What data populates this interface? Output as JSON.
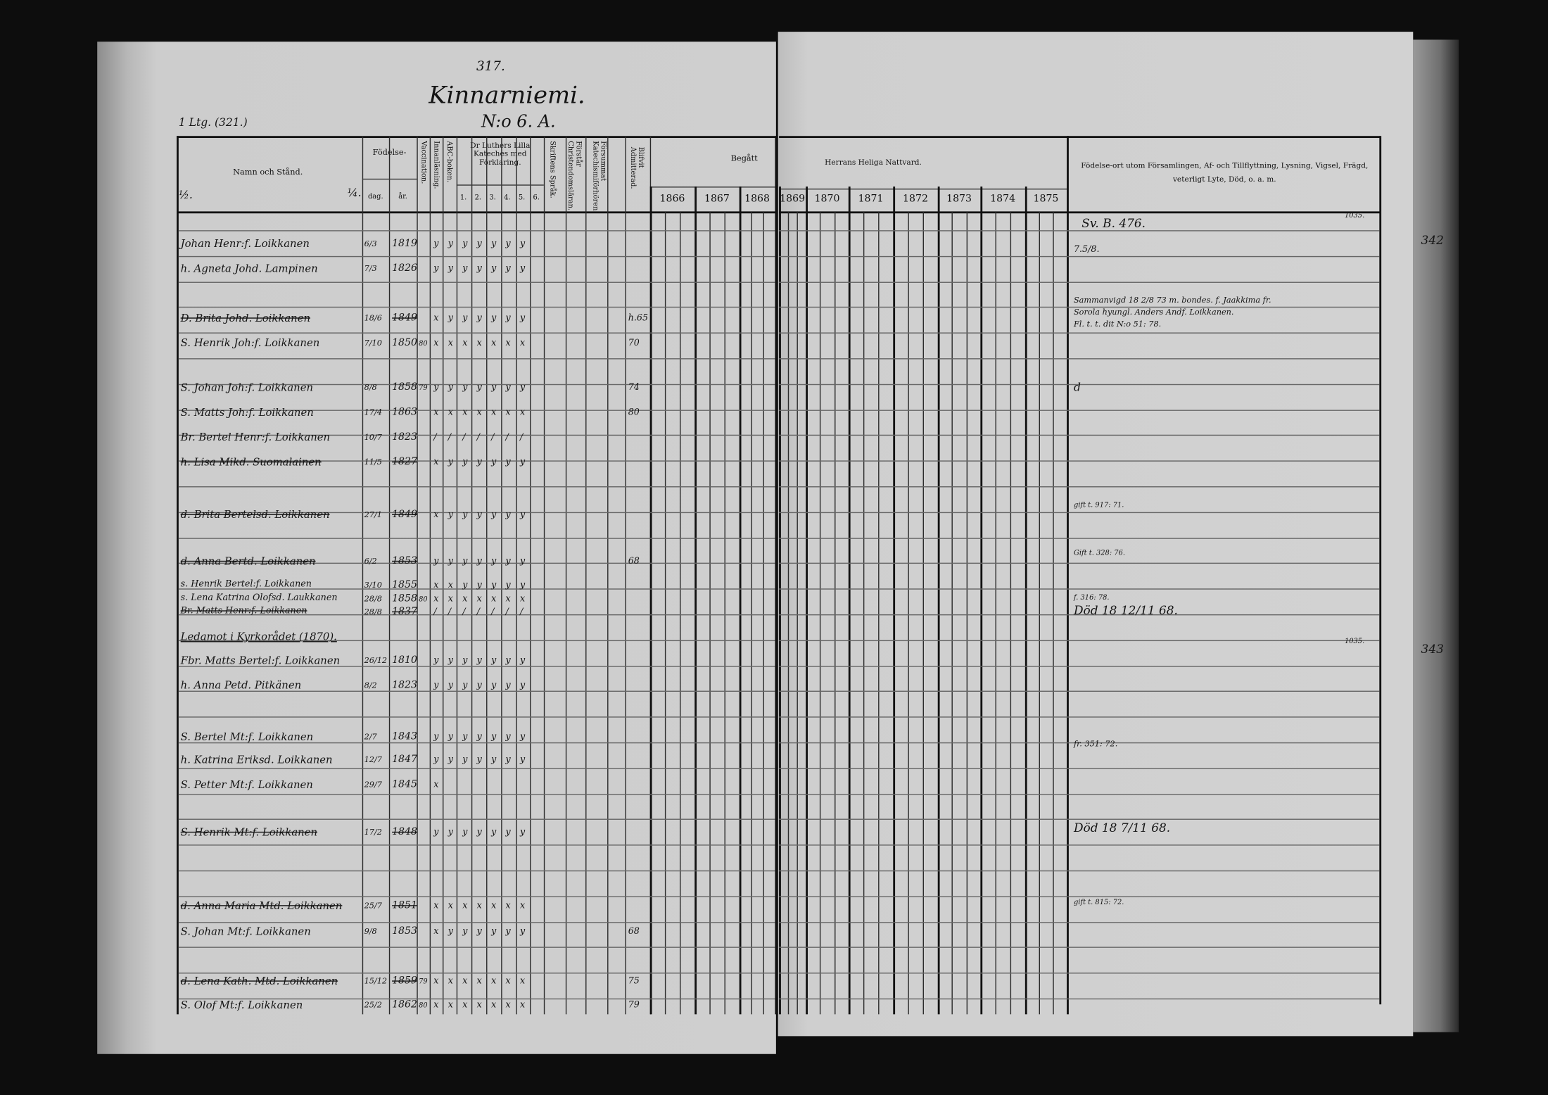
{
  "header": {
    "page_number": "317.",
    "village": "Kinnarniemi.",
    "house_number": "N:o 6. A.",
    "margin_ref": "1 Ltg. (321.)",
    "half_mark": "½.",
    "quarter_mark": "¼."
  },
  "columns": {
    "name": "Namn och Stånd.",
    "birth": "Födelse-",
    "day": "dag.",
    "year": "år.",
    "vaccination": "Vaccination.",
    "reading": "Innanläsning.",
    "abc": "ABC-boken.",
    "catechism": "Dr Luthers Lilla Kateches med Förklaring.",
    "catechism_parts": [
      "1.",
      "2.",
      "3.",
      "4.",
      "5.",
      "6."
    ],
    "scripture": "Skriftens Språk.",
    "christian_doctrine": "Förstår Christendomsläran.",
    "missed_exams": "Försummat Katechismiförhören.",
    "admitted": "Blifvit Admitterad.",
    "attended": "Begått",
    "communion": "Herrans Heliga Nattvard.",
    "notes": "Födelse-ort utom Församlingen, Af- och Tillflyttning, Lysning, Vigsel, Frägd, veterligt Lyte, Död, o. a. m.",
    "years_left": [
      "1866",
      "1867",
      "1868"
    ],
    "years_right": [
      "1869",
      "1870",
      "1871",
      "1872",
      "1873",
      "1874",
      "1875"
    ]
  },
  "rows": [
    {
      "name": "Johan Henr:f. Loikkanen",
      "day": "6/3",
      "year": "1819",
      "marks": "y y y y y y y",
      "struck": false
    },
    {
      "name": "h. Agneta Johd. Lampinen",
      "day": "7/3",
      "year": "1826",
      "marks": "y y y y y y y",
      "struck": false
    },
    {
      "name": "D. Brita Johd. Loikkanen",
      "day": "18/6",
      "year": "1849",
      "marks": "x y y y y y y",
      "admit": "h.65",
      "struck": true
    },
    {
      "name": "S. Henrik Joh:f. Loikkanen",
      "day": "7/10",
      "year": "1850",
      "vacc": "80",
      "marks": "x x x x x x x",
      "admit": "70",
      "struck": false
    },
    {
      "name": "S. Johan Joh:f. Loikkanen",
      "day": "8/8",
      "year": "1858",
      "vacc": "79",
      "marks": "y y y y y y y",
      "admit": "74",
      "struck": false
    },
    {
      "name": "S. Matts Joh:f. Loikkanen",
      "day": "17/4",
      "year": "1863",
      "marks": "x x x x x x x",
      "admit": "80",
      "struck": false
    },
    {
      "name": "Br. Bertel Henr:f. Loikkanen",
      "day": "10/7",
      "year": "1823",
      "marks": "/ / / / / / /",
      "struck": false
    },
    {
      "name": "h. Lisa Mikd. Suomalainen",
      "day": "11/5",
      "year": "1827",
      "marks": "x y y y y y y",
      "struck": true
    },
    {
      "name": "d. Brita Bertelsd. Loikkanen",
      "day": "27/1",
      "year": "1849",
      "marks": "x y y y y y y",
      "struck": true
    },
    {
      "name": "d. Anna Bertd. Loikkanen",
      "day": "6/2",
      "year": "1853",
      "marks": "y y y y y y y",
      "admit": "68",
      "struck": true
    },
    {
      "name": "s. Henrik Bertel:f. Loikkanen",
      "day": "3/10",
      "year": "1855",
      "marks": "x x y y y y y",
      "struck": false
    },
    {
      "name": "s. Lena Katrina Olofsd. Laukkanen",
      "day": "28/8",
      "year": "1858",
      "vacc": "80",
      "marks": "x x x x x x x",
      "struck": false
    },
    {
      "name": "Br. Matts Henr:f. Loikkanen",
      "day": "28/8",
      "year": "1837",
      "marks": "/ / / / / / /",
      "struck": true
    },
    {
      "name": "Ledamot i Kyrkorådet (1870).",
      "day": "",
      "year": "",
      "marks": "",
      "struck": false,
      "underline": true
    },
    {
      "name": "Fbr. Matts Bertel:f. Loikkanen",
      "day": "26/12",
      "year": "1810",
      "marks": "y y y y y y y",
      "struck": false
    },
    {
      "name": "h. Anna Petd. Pitkänen",
      "day": "8/2",
      "year": "1823",
      "marks": "y y y y y y y",
      "struck": false
    },
    {
      "name": "S. Bertel Mt:f. Loikkanen",
      "day": "2/7",
      "year": "1843",
      "marks": "y y y y y y y",
      "struck": false
    },
    {
      "name": "h. Katrina Eriksd. Loikkanen",
      "day": "12/7",
      "year": "1847",
      "marks": "y y y y y y y",
      "struck": false
    },
    {
      "name": "S. Petter Mt:f. Loikkanen",
      "day": "29/7",
      "year": "1845",
      "marks": "x",
      "struck": false
    },
    {
      "name": "S. Henrik Mt:f. Loikkanen",
      "day": "17/2",
      "year": "1848",
      "marks": "y y y y y y y",
      "struck": true
    },
    {
      "name": "d. Anna Maria Mtd. Loikkanen",
      "day": "25/7",
      "year": "1851",
      "marks": "x x x x x x x",
      "struck": true
    },
    {
      "name": "S. Johan Mt:f. Loikkanen",
      "day": "9/8",
      "year": "1853",
      "marks": "x y y y y y y",
      "admit": "68",
      "struck": false
    },
    {
      "name": "d. Lena Kath. Mtd. Loikkanen",
      "day": "15/12",
      "year": "1859",
      "vacc": "79",
      "marks": "x x x x x x x",
      "admit": "75",
      "struck": true
    },
    {
      "name": "S. Olof Mt:f. Loikkanen",
      "day": "25/2",
      "year": "1862",
      "vacc": "80",
      "marks": "x x x x x x x",
      "admit": "79",
      "struck": false
    }
  ],
  "notes": [
    "Sv. B. 476.",
    "1035.",
    "7.5/8.",
    "Sammanvigd 18 2/8 73 m. bondes. f. Jaakkima fr.",
    "Sorola hyungl. Anders Andf. Loikkanen.",
    "Fl. t. t. dit N:o 51: 78.",
    "d",
    "gift t. 917: 71.",
    "Gift t. 328: 76.",
    "f. 316: 78.",
    "Död 18 12/11 68.",
    "1035.",
    "fr. 351: 72.",
    "Död 18 7/11 68.",
    "gift t. 815: 72."
  ],
  "margin_numbers": [
    "342",
    "343"
  ]
}
